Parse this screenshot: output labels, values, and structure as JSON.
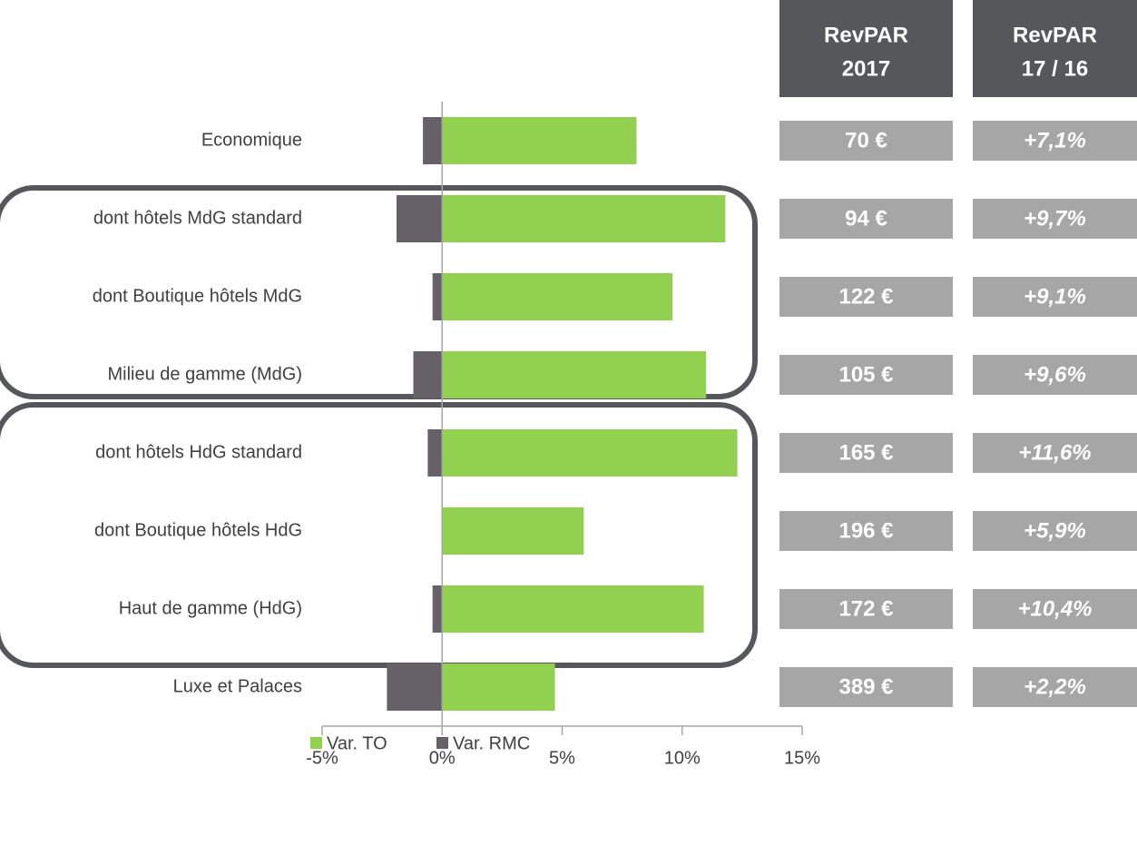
{
  "chart_data": {
    "type": "hbar",
    "categories": [
      "Economique",
      "dont hôtels MdG standard",
      "dont Boutique hôtels MdG",
      "Milieu de gamme (MdG)",
      "dont hôtels HdG standard",
      "dont Boutique hôtels HdG",
      "Haut de gamme (HdG)",
      "Luxe et Palaces"
    ],
    "series": [
      {
        "name": "Var. TO",
        "color": "#92d050",
        "values": [
          8.1,
          11.8,
          9.6,
          11.0,
          12.3,
          5.9,
          10.9,
          4.7
        ]
      },
      {
        "name": "Var. RMC",
        "color": "#666168",
        "values": [
          -0.8,
          -1.9,
          -0.4,
          -1.2,
          -0.6,
          0,
          -0.4,
          -2.3
        ]
      }
    ],
    "xlim": [
      -5,
      15
    ],
    "xticks": [
      {
        "value": -5,
        "label": "-5%"
      },
      {
        "value": 0,
        "label": "0%"
      },
      {
        "value": 5,
        "label": "5%"
      },
      {
        "value": 10,
        "label": "10%"
      },
      {
        "value": 15,
        "label": "15%"
      }
    ],
    "legend": "bottom"
  },
  "table": {
    "header": [
      [
        "RevPAR",
        "2017"
      ],
      [
        "RevPAR",
        "17 / 16"
      ]
    ],
    "rows": [
      [
        "70 €",
        "+7,1%"
      ],
      [
        "94 €",
        "+9,7%"
      ],
      [
        "122 €",
        "+9,1%"
      ],
      [
        "105 €",
        "+9,6%"
      ],
      [
        "165 €",
        "+11,6%"
      ],
      [
        "196 €",
        "+5,9%"
      ],
      [
        "172 €",
        "+10,4%"
      ],
      [
        "389 €",
        "+2,2%"
      ]
    ]
  }
}
